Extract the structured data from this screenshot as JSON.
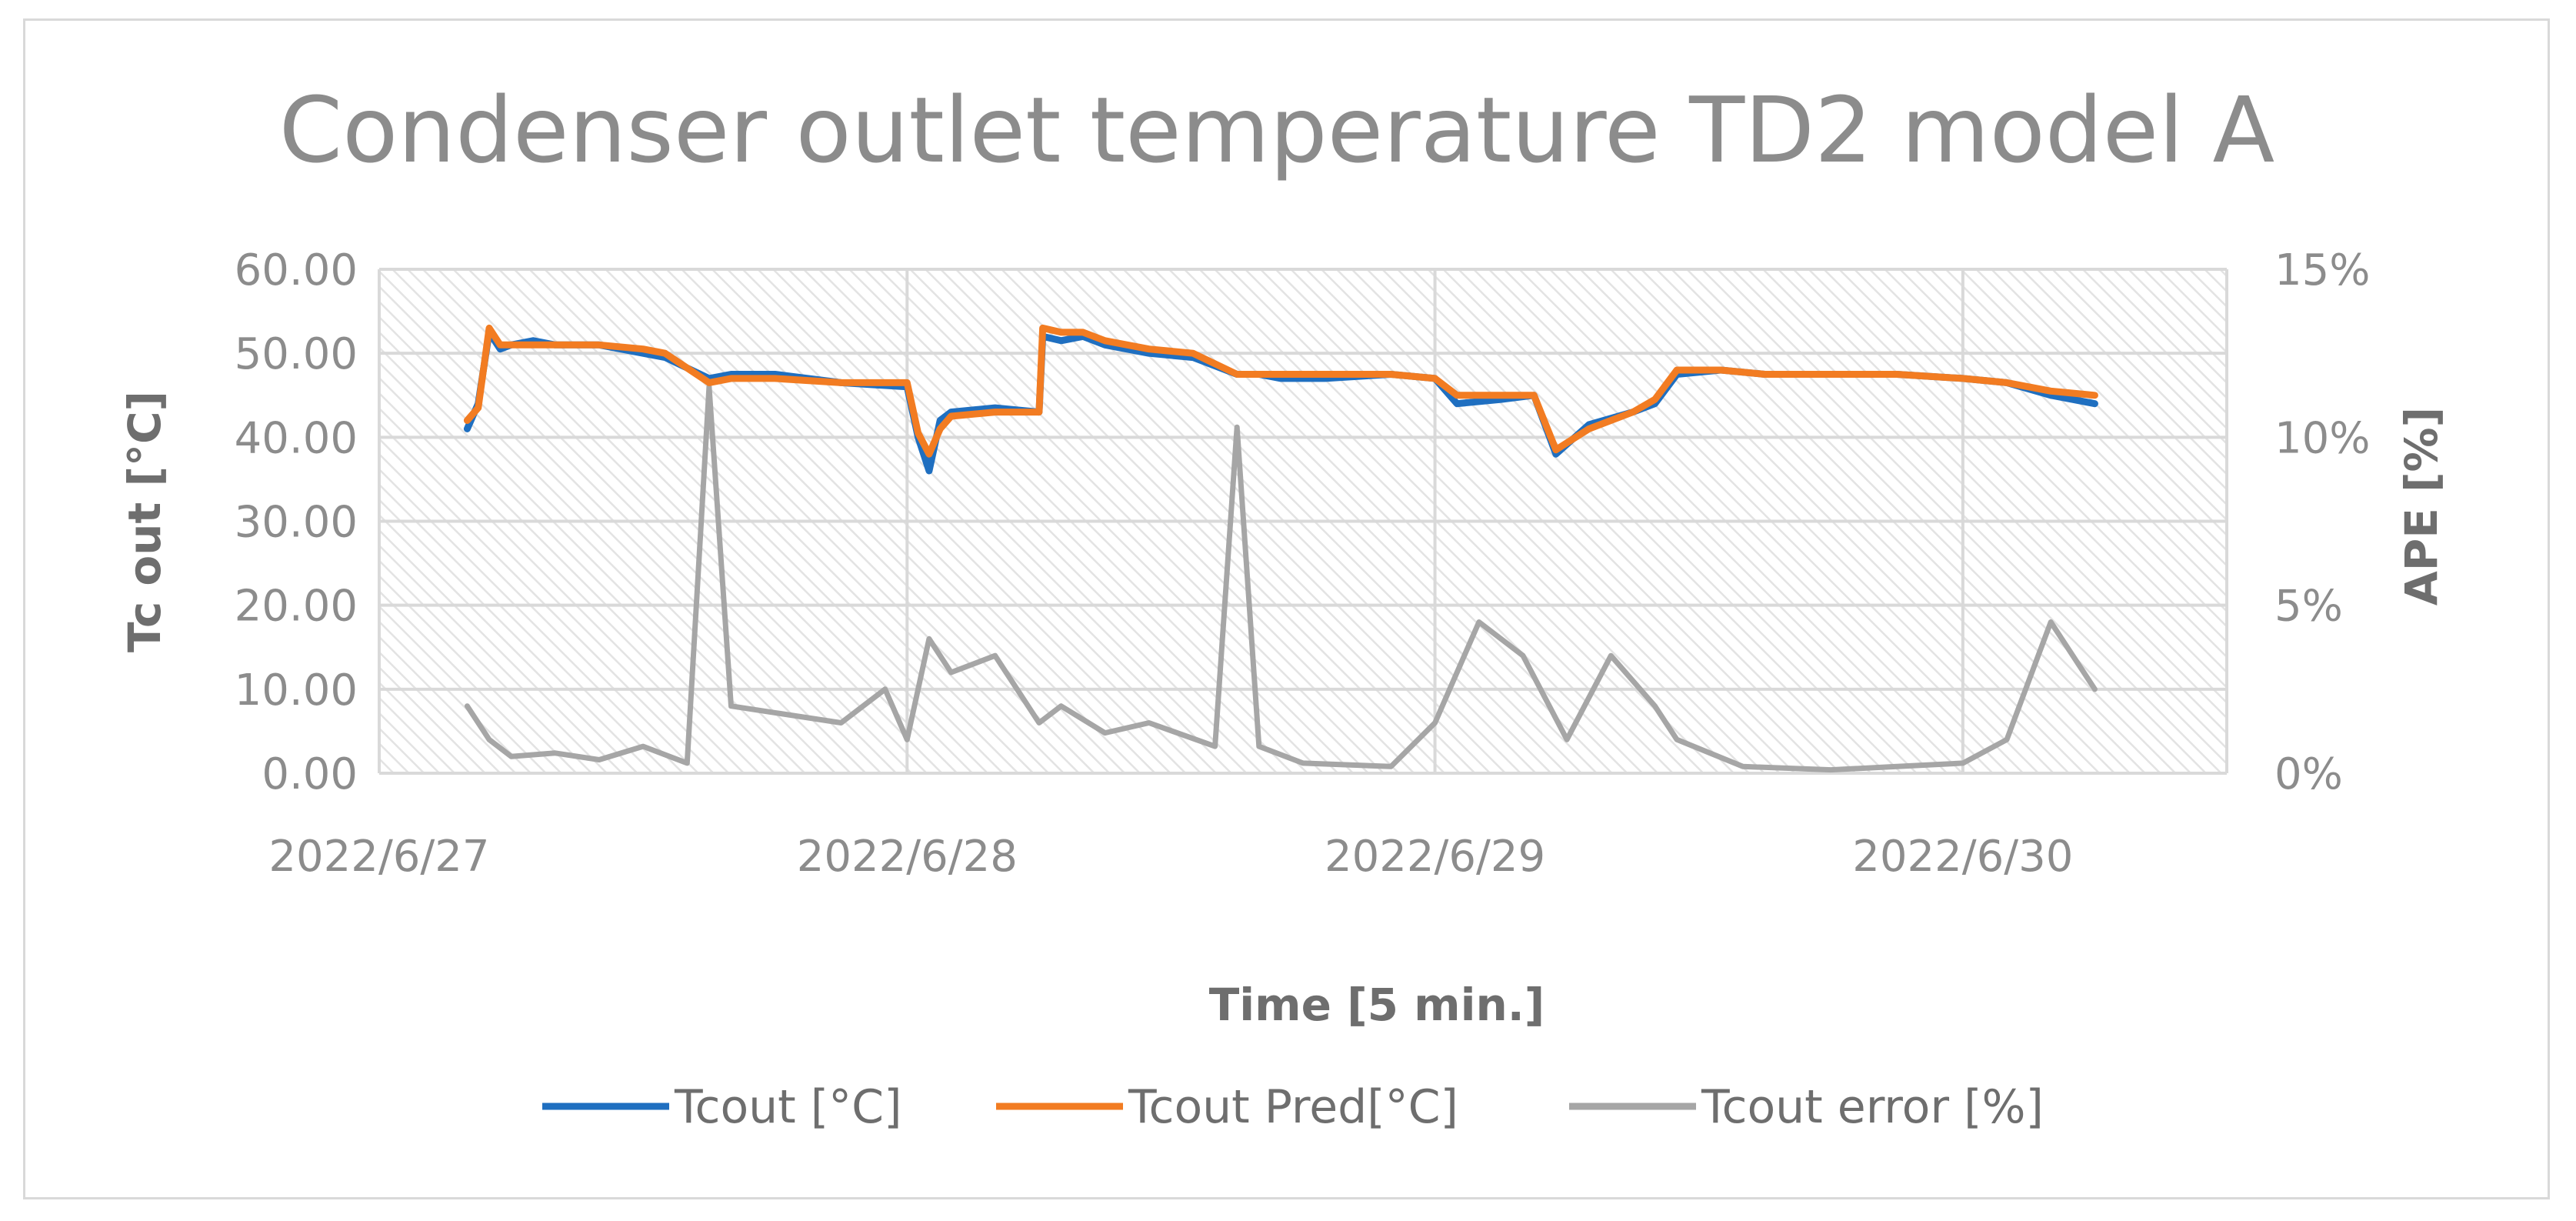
{
  "chart_data": {
    "type": "line",
    "title": "Condenser outlet temperature TD2 model A",
    "xlabel": "Time [5 min.]",
    "ylabel": "Tc out [°C]",
    "y2label": "APE [%]",
    "ylim": [
      0,
      60
    ],
    "y2lim": [
      0,
      15
    ],
    "xlim": [
      "2022/6/27",
      "2022/6/30 12:00"
    ],
    "x_ticks": [
      "2022/6/27",
      "2022/6/28",
      "2022/6/29",
      "2022/6/30"
    ],
    "y_ticks": [
      "0.00",
      "10.00",
      "20.00",
      "30.00",
      "40.00",
      "50.00",
      "60.00"
    ],
    "y2_ticks": [
      "0%",
      "5%",
      "10%",
      "15%"
    ],
    "grid": true,
    "legend_position": "bottom",
    "colors": {
      "tcout": "#1f6fc0",
      "pred": "#f27c22",
      "error": "#a6a6a6"
    },
    "series": [
      {
        "name": "Tcout [°C]",
        "axis": "left",
        "color": "#1f6fc0",
        "x": [
          "2022/6/27 04:00",
          "2022/6/27 04:30",
          "2022/6/27 05:00",
          "2022/6/27 05:30",
          "2022/6/27 06:00",
          "2022/6/27 07:00",
          "2022/6/27 08:00",
          "2022/6/27 10:00",
          "2022/6/27 12:00",
          "2022/6/27 13:00",
          "2022/6/27 15:00",
          "2022/6/27 16:00",
          "2022/6/27 18:00",
          "2022/6/27 21:00",
          "2022/6/28 00:00",
          "2022/6/28 00:30",
          "2022/6/28 01:00",
          "2022/6/28 01:30",
          "2022/6/28 02:00",
          "2022/6/28 04:00",
          "2022/6/28 06:00",
          "2022/6/28 06:10",
          "2022/6/28 07:00",
          "2022/6/28 08:00",
          "2022/6/28 09:00",
          "2022/6/28 11:00",
          "2022/6/28 13:00",
          "2022/6/28 15:00",
          "2022/6/28 16:00",
          "2022/6/28 17:00",
          "2022/6/28 19:00",
          "2022/6/28 22:00",
          "2022/6/29 00:00",
          "2022/6/29 01:00",
          "2022/6/29 03:00",
          "2022/6/29 04:30",
          "2022/6/29 05:30",
          "2022/6/29 07:00",
          "2022/6/29 09:00",
          "2022/6/29 10:00",
          "2022/6/29 11:00",
          "2022/6/29 13:00",
          "2022/6/29 15:00",
          "2022/6/29 18:00",
          "2022/6/29 21:00",
          "2022/6/30 00:00",
          "2022/6/30 02:00",
          "2022/6/30 04:00",
          "2022/6/30 06:00"
        ],
        "y": [
          41.0,
          44.0,
          52.5,
          50.5,
          51.0,
          51.5,
          51.0,
          51.0,
          50.0,
          49.5,
          47.0,
          47.5,
          47.5,
          46.5,
          46.0,
          40.0,
          36.0,
          42.0,
          43.0,
          43.5,
          43.0,
          52.0,
          51.5,
          52.0,
          51.0,
          50.0,
          49.5,
          47.5,
          47.5,
          47.0,
          47.0,
          47.5,
          47.0,
          44.0,
          44.5,
          45.0,
          38.0,
          41.5,
          43.0,
          44.0,
          47.5,
          48.0,
          47.5,
          47.5,
          47.5,
          47.0,
          46.5,
          45.0,
          44.0
        ]
      },
      {
        "name": "Tcout Pred[°C]",
        "axis": "left",
        "color": "#f27c22",
        "x": [
          "2022/6/27 04:00",
          "2022/6/27 04:30",
          "2022/6/27 05:00",
          "2022/6/27 05:30",
          "2022/6/27 06:00",
          "2022/6/27 07:00",
          "2022/6/27 08:00",
          "2022/6/27 10:00",
          "2022/6/27 12:00",
          "2022/6/27 13:00",
          "2022/6/27 15:00",
          "2022/6/27 16:00",
          "2022/6/27 18:00",
          "2022/6/27 21:00",
          "2022/6/28 00:00",
          "2022/6/28 00:30",
          "2022/6/28 01:00",
          "2022/6/28 01:30",
          "2022/6/28 02:00",
          "2022/6/28 04:00",
          "2022/6/28 06:00",
          "2022/6/28 06:10",
          "2022/6/28 07:00",
          "2022/6/28 08:00",
          "2022/6/28 09:00",
          "2022/6/28 11:00",
          "2022/6/28 13:00",
          "2022/6/28 15:00",
          "2022/6/28 16:00",
          "2022/6/28 17:00",
          "2022/6/28 19:00",
          "2022/6/28 22:00",
          "2022/6/29 00:00",
          "2022/6/29 01:00",
          "2022/6/29 03:00",
          "2022/6/29 04:30",
          "2022/6/29 05:30",
          "2022/6/29 07:00",
          "2022/6/29 09:00",
          "2022/6/29 10:00",
          "2022/6/29 11:00",
          "2022/6/29 13:00",
          "2022/6/29 15:00",
          "2022/6/29 18:00",
          "2022/6/29 21:00",
          "2022/6/30 00:00",
          "2022/6/30 02:00",
          "2022/6/30 04:00",
          "2022/6/30 06:00"
        ],
        "y": [
          42.0,
          43.5,
          53.0,
          51.0,
          51.0,
          51.0,
          51.0,
          51.0,
          50.5,
          50.0,
          46.5,
          47.0,
          47.0,
          46.5,
          46.5,
          40.5,
          38.0,
          41.0,
          42.5,
          43.0,
          43.0,
          53.0,
          52.5,
          52.5,
          51.5,
          50.5,
          50.0,
          47.5,
          47.5,
          47.5,
          47.5,
          47.5,
          47.0,
          45.0,
          45.0,
          45.0,
          38.5,
          41.0,
          43.0,
          44.5,
          48.0,
          48.0,
          47.5,
          47.5,
          47.5,
          47.0,
          46.5,
          45.5,
          45.0
        ]
      },
      {
        "name": "Tcout error [%]",
        "axis": "right",
        "color": "#a6a6a6",
        "x": [
          "2022/6/27 04:00",
          "2022/6/27 05:00",
          "2022/6/27 06:00",
          "2022/6/27 08:00",
          "2022/6/27 10:00",
          "2022/6/27 12:00",
          "2022/6/27 14:00",
          "2022/6/27 15:00",
          "2022/6/27 16:00",
          "2022/6/27 18:00",
          "2022/6/27 21:00",
          "2022/6/27 23:00",
          "2022/6/28 00:00",
          "2022/6/28 01:00",
          "2022/6/28 02:00",
          "2022/6/28 04:00",
          "2022/6/28 06:00",
          "2022/6/28 07:00",
          "2022/6/28 09:00",
          "2022/6/28 11:00",
          "2022/6/28 14:00",
          "2022/6/28 15:00",
          "2022/6/28 16:00",
          "2022/6/28 18:00",
          "2022/6/28 22:00",
          "2022/6/29 00:00",
          "2022/6/29 02:00",
          "2022/6/29 04:00",
          "2022/6/29 06:00",
          "2022/6/29 08:00",
          "2022/6/29 10:00",
          "2022/6/29 11:00",
          "2022/6/29 14:00",
          "2022/6/29 18:00",
          "2022/6/29 21:00",
          "2022/6/30 00:00",
          "2022/6/30 02:00",
          "2022/6/30 04:00",
          "2022/6/30 06:00"
        ],
        "y": [
          2.0,
          1.0,
          0.5,
          0.6,
          0.4,
          0.8,
          0.3,
          11.5,
          2.0,
          1.8,
          1.5,
          2.5,
          1.0,
          4.0,
          3.0,
          3.5,
          1.5,
          2.0,
          1.2,
          1.5,
          0.8,
          10.3,
          0.8,
          0.3,
          0.2,
          1.5,
          4.5,
          3.5,
          1.0,
          3.5,
          2.0,
          1.0,
          0.2,
          0.1,
          0.2,
          0.3,
          1.0,
          4.5,
          2.5
        ]
      }
    ]
  }
}
